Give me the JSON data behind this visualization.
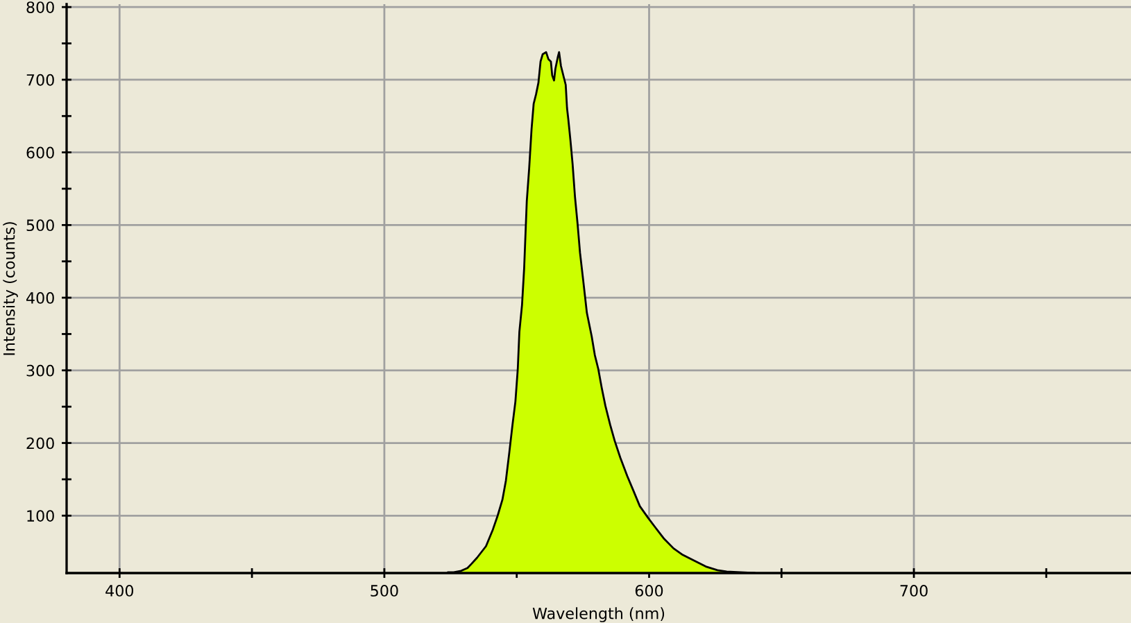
{
  "chart_data": {
    "type": "area",
    "xlabel": "Wavelength (nm)",
    "ylabel": "Intensity (counts)",
    "xlim": [
      380,
      782
    ],
    "ylim": [
      21,
      804
    ],
    "xticks": [
      400,
      {
        "value": 450,
        "label": null
      },
      500,
      {
        "value": 550,
        "label": null
      },
      600,
      {
        "value": 650,
        "label": null
      },
      700,
      {
        "value": 750,
        "label": null
      }
    ],
    "yticks": [
      100,
      {
        "value": 150,
        "label": null
      },
      200,
      {
        "value": 250,
        "label": null
      },
      300,
      {
        "value": 350,
        "label": null
      },
      400,
      {
        "value": 450,
        "label": null
      },
      500,
      {
        "value": 550,
        "label": null
      },
      600,
      {
        "value": 650,
        "label": null
      },
      700,
      {
        "value": 750,
        "label": null
      },
      800
    ],
    "grid": true,
    "legend": false,
    "marker": "none",
    "line_style": "solid",
    "x": [
      524,
      526.2,
      529,
      531.4,
      533,
      535,
      538.4,
      541,
      542.8,
      544.6,
      545.9,
      547.2,
      548.4,
      549.5,
      550.4,
      551,
      552,
      552.8,
      553.8,
      554.7,
      555.6,
      556.4,
      557.3,
      558.2,
      559,
      559.8,
      561.1,
      562,
      562.9,
      563.4,
      564.1,
      564.6,
      565.5,
      566,
      566.7,
      567.8,
      568.5,
      569,
      569.5,
      570.3,
      571.1,
      572,
      573,
      573.9,
      575.1,
      576.5,
      578.3,
      579.5,
      580.8,
      582.1,
      583.5,
      585.3,
      587,
      589.1,
      591.7,
      594,
      596.5,
      599.6,
      602.3,
      605.7,
      609.2,
      612.7,
      617.1,
      621.4,
      625.8,
      629.3,
      634.6,
      640
    ],
    "series": [
      {
        "color": "#ccff00",
        "values": [
          22,
          22,
          24,
          28,
          34,
          42,
          58,
          81,
          100,
          122,
          148,
          187,
          225,
          257,
          302,
          353,
          390,
          440,
          533,
          578,
          632,
          667,
          680,
          696,
          725,
          735,
          738,
          728,
          725,
          706,
          699,
          715,
          731,
          738,
          719,
          703,
          693,
          661,
          645,
          616,
          584,
          539,
          501,
          462,
          424,
          379,
          347,
          321,
          302,
          276,
          251,
          225,
          203,
          180,
          155,
          135,
          113,
          97,
          84,
          68,
          55,
          46,
          38,
          30,
          25,
          23,
          22,
          21
        ]
      }
    ]
  }
}
